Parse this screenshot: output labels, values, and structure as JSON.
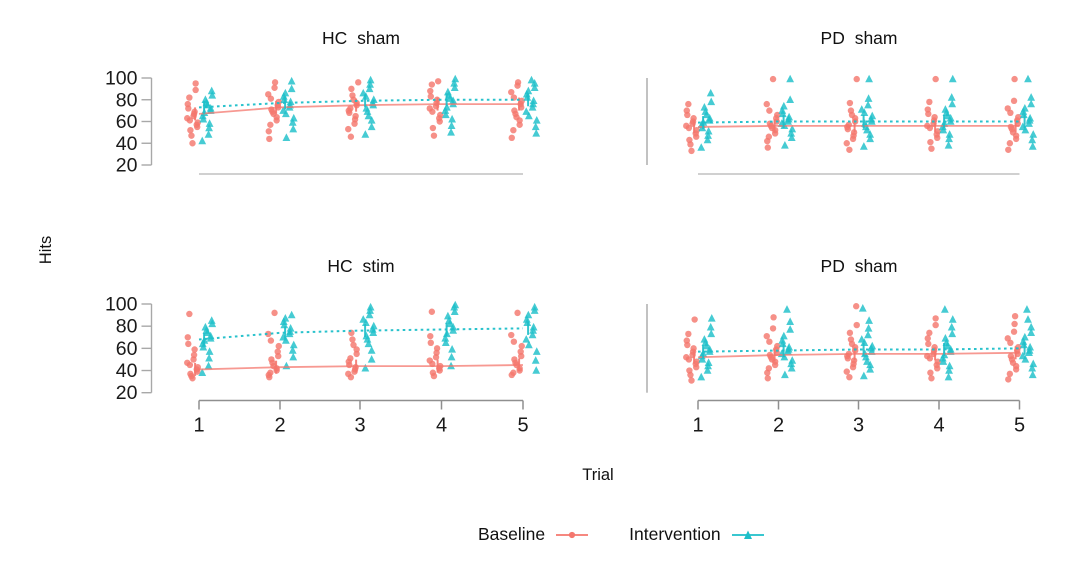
{
  "figure": {
    "ylabel": "Hits",
    "xlabel": "Trial",
    "x_tick_labels": [
      "1",
      "2",
      "3",
      "4",
      "5"
    ],
    "y_tick_labels": [
      "100",
      "80",
      "60",
      "40",
      "20"
    ],
    "y_tick_values": [
      100,
      80,
      60,
      40,
      20
    ],
    "colors": {
      "baseline": "#f4776e",
      "intervention": "#1dbfc9",
      "axis_light": "#b5b5b5",
      "axis_dark": "#8f8f8f",
      "bracket": "#a8a8a8",
      "text": "#1a1a1a"
    },
    "legend": {
      "items": [
        {
          "label": "Baseline",
          "series": "baseline",
          "marker": "circle"
        },
        {
          "label": "Intervention",
          "series": "intervention",
          "marker": "triangle"
        }
      ]
    }
  },
  "chart_data": [
    {
      "type": "scatter",
      "title": "HC sham",
      "position": "top-left",
      "xlabel": "Trial",
      "ylabel": "Hits",
      "x": [
        1,
        2,
        3,
        4,
        5
      ],
      "ylim": [
        20,
        100
      ],
      "grid": false,
      "series": [
        {
          "name": "Baseline",
          "marker": "circle",
          "line": "solid",
          "color_key": "baseline",
          "means": [
            67,
            73,
            75,
            76,
            76
          ],
          "points": [
            [
              40,
              47,
              52,
              55,
              57,
              59,
              61,
              63,
              65,
              67,
              69,
              72,
              76,
              82,
              89,
              95
            ],
            [
              44,
              51,
              57,
              61,
              64,
              67,
              69,
              71,
              73,
              75,
              78,
              81,
              85,
              91,
              96
            ],
            [
              46,
              53,
              58,
              62,
              65,
              68,
              70,
              72,
              75,
              77,
              80,
              84,
              90,
              96
            ],
            [
              47,
              54,
              60,
              63,
              66,
              69,
              72,
              74,
              77,
              80,
              83,
              88,
              94,
              97
            ],
            [
              45,
              52,
              57,
              61,
              64,
              67,
              70,
              73,
              76,
              79,
              82,
              87,
              93,
              96
            ]
          ]
        },
        {
          "name": "Intervention",
          "marker": "triangle",
          "line": "dashed",
          "color_key": "intervention",
          "means": [
            73,
            77,
            79,
            80,
            80
          ],
          "points": [
            [
              42,
              48,
              54,
              58,
              62,
              65,
              68,
              70,
              72,
              75,
              77,
              80,
              84,
              88
            ],
            [
              45,
              53,
              59,
              63,
              67,
              70,
              73,
              75,
              78,
              80,
              83,
              86,
              90,
              97
            ],
            [
              48,
              55,
              61,
              65,
              69,
              72,
              75,
              77,
              80,
              83,
              86,
              90,
              94,
              98
            ],
            [
              50,
              56,
              62,
              66,
              70,
              73,
              76,
              79,
              81,
              84,
              87,
              91,
              95,
              99
            ],
            [
              49,
              55,
              61,
              65,
              69,
              73,
              76,
              79,
              82,
              85,
              88,
              91,
              95,
              98
            ]
          ]
        }
      ]
    },
    {
      "type": "scatter",
      "title": "PD sham",
      "position": "top-right",
      "xlabel": "Trial",
      "ylabel": "Hits",
      "x": [
        1,
        2,
        3,
        4,
        5
      ],
      "ylim": [
        20,
        100
      ],
      "grid": false,
      "series": [
        {
          "name": "Baseline",
          "marker": "circle",
          "line": "solid",
          "color_key": "baseline",
          "means": [
            55,
            56,
            56,
            56,
            56
          ],
          "points": [
            [
              33,
              39,
              43,
              46,
              49,
              52,
              54,
              56,
              58,
              60,
              63,
              66,
              70,
              76
            ],
            [
              36,
              42,
              46,
              49,
              52,
              54,
              56,
              58,
              60,
              63,
              66,
              70,
              76,
              99
            ],
            [
              34,
              40,
              44,
              47,
              50,
              53,
              55,
              57,
              60,
              63,
              66,
              70,
              77,
              99
            ],
            [
              35,
              41,
              45,
              48,
              51,
              54,
              56,
              58,
              61,
              64,
              67,
              71,
              78,
              99
            ],
            [
              34,
              40,
              44,
              47,
              50,
              53,
              55,
              58,
              61,
              64,
              68,
              72,
              79,
              99
            ]
          ]
        },
        {
          "name": "Intervention",
          "marker": "triangle",
          "line": "dashed",
          "color_key": "intervention",
          "means": [
            59,
            60,
            60,
            60,
            60
          ],
          "points": [
            [
              36,
              43,
              47,
              51,
              54,
              57,
              59,
              61,
              63,
              66,
              69,
              73,
              78,
              86
            ],
            [
              38,
              45,
              49,
              53,
              56,
              58,
              60,
              62,
              64,
              67,
              70,
              74,
              80,
              99
            ],
            [
              37,
              44,
              48,
              52,
              55,
              58,
              60,
              62,
              65,
              68,
              71,
              75,
              81,
              99
            ],
            [
              38,
              44,
              48,
              52,
              55,
              58,
              60,
              63,
              65,
              68,
              71,
              76,
              82,
              99
            ],
            [
              37,
              43,
              48,
              52,
              55,
              58,
              61,
              63,
              66,
              69,
              72,
              76,
              82,
              99
            ]
          ]
        }
      ]
    },
    {
      "type": "scatter",
      "title": "HC stim",
      "position": "bottom-left",
      "xlabel": "Trial",
      "ylabel": "Hits",
      "x": [
        1,
        2,
        3,
        4,
        5
      ],
      "ylim": [
        20,
        100
      ],
      "grid": false,
      "series": [
        {
          "name": "Baseline",
          "marker": "circle",
          "line": "solid",
          "color_key": "baseline",
          "means": [
            41,
            43,
            44,
            44,
            45
          ],
          "points": [
            [
              33,
              35,
              37,
              39,
              41,
              43,
              45,
              47,
              50,
              54,
              59,
              64,
              70,
              91
            ],
            [
              34,
              36,
              38,
              40,
              42,
              44,
              47,
              50,
              53,
              57,
              62,
              67,
              73,
              92
            ],
            [
              34,
              37,
              39,
              41,
              43,
              45,
              48,
              51,
              55,
              59,
              63,
              68,
              74
            ],
            [
              35,
              38,
              40,
              42,
              44,
              46,
              49,
              52,
              56,
              60,
              65,
              71,
              93
            ],
            [
              36,
              38,
              40,
              42,
              45,
              47,
              50,
              53,
              57,
              62,
              66,
              72,
              92
            ]
          ]
        },
        {
          "name": "Intervention",
          "marker": "triangle",
          "line": "dashed",
          "color_key": "intervention",
          "means": [
            68,
            74,
            76,
            77,
            78
          ],
          "points": [
            [
              38,
              44,
              51,
              57,
              61,
              64,
              67,
              69,
              71,
              74,
              76,
              79,
              82,
              85
            ],
            [
              44,
              52,
              58,
              63,
              67,
              70,
              73,
              75,
              78,
              81,
              84,
              87,
              90
            ],
            [
              42,
              50,
              58,
              64,
              68,
              71,
              74,
              77,
              80,
              83,
              86,
              90,
              94,
              97
            ],
            [
              44,
              52,
              59,
              65,
              69,
              73,
              76,
              79,
              82,
              85,
              89,
              93,
              97,
              99
            ],
            [
              40,
              49,
              57,
              63,
              68,
              72,
              76,
              79,
              83,
              86,
              90,
              94,
              97
            ]
          ]
        }
      ]
    },
    {
      "type": "scatter",
      "title": "PD sham",
      "position": "bottom-right",
      "xlabel": "Trial",
      "ylabel": "Hits",
      "x": [
        1,
        2,
        3,
        4,
        5
      ],
      "ylim": [
        20,
        100
      ],
      "grid": false,
      "series": [
        {
          "name": "Baseline",
          "marker": "circle",
          "line": "solid",
          "color_key": "baseline",
          "means": [
            52,
            54,
            55,
            55,
            56
          ],
          "points": [
            [
              31,
              36,
              40,
              43,
              46,
              48,
              50,
              52,
              54,
              57,
              60,
              63,
              67,
              73,
              86
            ],
            [
              33,
              38,
              42,
              45,
              48,
              50,
              52,
              54,
              56,
              59,
              62,
              66,
              71,
              78,
              88
            ],
            [
              34,
              39,
              43,
              46,
              49,
              51,
              53,
              55,
              58,
              61,
              64,
              68,
              74,
              81,
              98
            ],
            [
              33,
              38,
              42,
              45,
              48,
              51,
              53,
              55,
              58,
              61,
              64,
              69,
              74,
              81,
              87
            ],
            [
              32,
              37,
              41,
              44,
              47,
              50,
              53,
              55,
              58,
              61,
              65,
              69,
              75,
              82,
              89
            ]
          ]
        },
        {
          "name": "Intervention",
          "marker": "triangle",
          "line": "dashed",
          "color_key": "intervention",
          "means": [
            57,
            58,
            59,
            59,
            60
          ],
          "points": [
            [
              34,
              40,
              44,
              47,
              50,
              53,
              55,
              57,
              59,
              62,
              65,
              68,
              73,
              79,
              87
            ],
            [
              36,
              42,
              46,
              49,
              52,
              55,
              57,
              59,
              61,
              64,
              67,
              71,
              77,
              84,
              95
            ],
            [
              35,
              41,
              45,
              48,
              52,
              55,
              57,
              60,
              62,
              65,
              68,
              72,
              78,
              85,
              96
            ],
            [
              34,
              40,
              44,
              48,
              51,
              54,
              57,
              59,
              62,
              65,
              69,
              73,
              79,
              86,
              95
            ],
            [
              36,
              42,
              46,
              50,
              53,
              56,
              58,
              61,
              63,
              66,
              70,
              74,
              79,
              86,
              95
            ]
          ]
        }
      ]
    }
  ]
}
